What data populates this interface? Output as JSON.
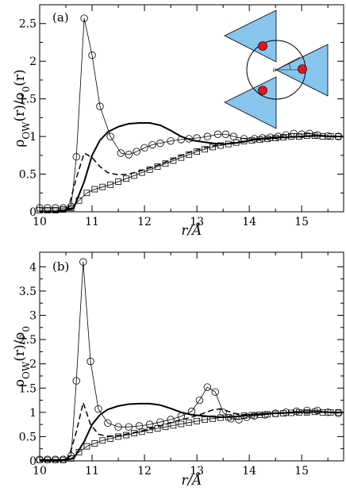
{
  "chart_data": [
    {
      "type": "line",
      "panel_label": "(a)",
      "xlabel": "r/Å",
      "ylabel": "ρOW(r)/ρ0(r)",
      "ylabel_parts": {
        "main": "ρ",
        "sub1": "OW",
        "mid": "(r)/ρ",
        "sub2": "0",
        "tail": "(r)"
      },
      "xlim": [
        10,
        15.8
      ],
      "ylim": [
        0,
        2.75
      ],
      "xticks": [
        10,
        11,
        12,
        13,
        14,
        15
      ],
      "yticks": [
        0,
        0.5,
        1,
        1.5,
        2,
        2.5
      ],
      "grid": false,
      "inset": "three triangles with red dots around a circle, angle θ marked",
      "series": [
        {
          "style": "circles-thin-line",
          "x": [
            10.0,
            10.15,
            10.3,
            10.45,
            10.6,
            10.7,
            10.85,
            11.0,
            11.15,
            11.35,
            11.55,
            11.7,
            11.85,
            12.0,
            12.15,
            12.3,
            12.5,
            12.7,
            12.85,
            13.0,
            13.2,
            13.4,
            13.55,
            13.7,
            13.9,
            14.1,
            14.25,
            14.4,
            14.55,
            14.7,
            14.85,
            15.0,
            15.15,
            15.3,
            15.5,
            15.7
          ],
          "y": [
            0.05,
            0.05,
            0.05,
            0.05,
            0.07,
            0.73,
            2.57,
            2.08,
            1.4,
            1.0,
            0.78,
            0.76,
            0.8,
            0.85,
            0.89,
            0.91,
            0.94,
            0.96,
            0.97,
            0.98,
            1.0,
            1.03,
            1.03,
            1.0,
            0.97,
            0.97,
            0.98,
            0.99,
            1.0,
            1.02,
            1.04,
            1.03,
            1.04,
            1.02,
            1.01,
            1.0
          ]
        },
        {
          "style": "dashed",
          "x": [
            10.0,
            10.3,
            10.55,
            10.7,
            10.85,
            11.0,
            11.15,
            11.3,
            11.5,
            11.7,
            12.0,
            12.3,
            12.6,
            12.9,
            13.2,
            13.5,
            13.8,
            14.1,
            14.4,
            14.7,
            15.0,
            15.3,
            15.6,
            15.8
          ],
          "y": [
            0.0,
            0.0,
            0.05,
            0.45,
            0.78,
            0.72,
            0.6,
            0.52,
            0.49,
            0.5,
            0.56,
            0.63,
            0.72,
            0.8,
            0.86,
            0.9,
            0.93,
            0.95,
            0.97,
            0.99,
            1.0,
            1.01,
            1.0,
            1.0
          ]
        },
        {
          "style": "solid-thick",
          "x": [
            10.0,
            10.4,
            10.65,
            10.85,
            11.0,
            11.15,
            11.3,
            11.5,
            11.7,
            11.9,
            12.1,
            12.3,
            12.5,
            12.7,
            12.9,
            13.1,
            13.3,
            13.5,
            13.7,
            13.9,
            14.1,
            14.4,
            14.7,
            15.0,
            15.3,
            15.6,
            15.8
          ],
          "y": [
            0.0,
            0.0,
            0.05,
            0.4,
            0.75,
            0.95,
            1.06,
            1.13,
            1.17,
            1.18,
            1.18,
            1.15,
            1.08,
            1.0,
            0.95,
            0.93,
            0.91,
            0.9,
            0.91,
            0.93,
            0.96,
            0.98,
            0.99,
            1.0,
            1.01,
            1.0,
            1.0
          ]
        },
        {
          "style": "squares-thin-line",
          "x": [
            10.0,
            10.15,
            10.3,
            10.45,
            10.6,
            10.75,
            10.9,
            11.05,
            11.2,
            11.35,
            11.5,
            11.65,
            11.8,
            11.95,
            12.1,
            12.25,
            12.4,
            12.55,
            12.7,
            12.85,
            13.0,
            13.15,
            13.3,
            13.45,
            13.6,
            13.75,
            13.9,
            14.05,
            14.2,
            14.35,
            14.5,
            14.65,
            14.8,
            14.95,
            15.1,
            15.25,
            15.4,
            15.55,
            15.7
          ],
          "y": [
            0.02,
            0.02,
            0.02,
            0.03,
            0.05,
            0.15,
            0.25,
            0.3,
            0.33,
            0.36,
            0.4,
            0.44,
            0.48,
            0.52,
            0.56,
            0.6,
            0.64,
            0.68,
            0.72,
            0.76,
            0.8,
            0.83,
            0.86,
            0.88,
            0.9,
            0.92,
            0.94,
            0.95,
            0.96,
            0.97,
            0.98,
            0.99,
            1.0,
            1.0,
            1.01,
            1.01,
            1.0,
            1.0,
            1.0
          ]
        }
      ]
    },
    {
      "type": "line",
      "panel_label": "(b)",
      "xlabel": "r/Å",
      "ylabel": "ρOW(r)/ρ0",
      "ylabel_parts": {
        "main": "ρ",
        "sub1": "OW",
        "mid": "(r)/ρ",
        "sub2": "0",
        "tail": ""
      },
      "xlim": [
        10,
        15.8
      ],
      "ylim": [
        0,
        4.3
      ],
      "xticks": [
        10,
        11,
        12,
        13,
        14,
        15
      ],
      "yticks": [
        0,
        0.5,
        1,
        1.5,
        2,
        2.5,
        3,
        3.5,
        4
      ],
      "grid": false,
      "series": [
        {
          "style": "circles-thin-line",
          "x": [
            10.0,
            10.15,
            10.3,
            10.45,
            10.6,
            10.7,
            10.83,
            10.97,
            11.12,
            11.3,
            11.5,
            11.7,
            11.9,
            12.1,
            12.3,
            12.5,
            12.7,
            12.9,
            13.05,
            13.2,
            13.35,
            13.5,
            13.65,
            13.8,
            13.95,
            14.1,
            14.3,
            14.5,
            14.7,
            14.9,
            15.1,
            15.3,
            15.5,
            15.7
          ],
          "y": [
            0.03,
            0.03,
            0.03,
            0.03,
            0.1,
            1.65,
            4.1,
            2.05,
            1.07,
            0.78,
            0.7,
            0.7,
            0.72,
            0.75,
            0.8,
            0.85,
            0.92,
            1.02,
            1.25,
            1.52,
            1.42,
            1.0,
            0.87,
            0.85,
            0.9,
            0.93,
            0.95,
            0.98,
            1.0,
            1.02,
            1.04,
            1.04,
            1.0,
            0.98
          ]
        },
        {
          "style": "dashed",
          "x": [
            10.0,
            10.3,
            10.55,
            10.7,
            10.83,
            10.97,
            11.12,
            11.3,
            11.5,
            11.7,
            12.0,
            12.3,
            12.6,
            12.9,
            13.1,
            13.3,
            13.45,
            13.6,
            13.8,
            14.0,
            14.3,
            14.6,
            14.9,
            15.2,
            15.5,
            15.8
          ],
          "y": [
            0.0,
            0.0,
            0.05,
            0.6,
            1.2,
            0.75,
            0.55,
            0.5,
            0.52,
            0.56,
            0.63,
            0.72,
            0.82,
            0.9,
            0.97,
            1.05,
            1.07,
            1.02,
            0.95,
            0.95,
            0.97,
            0.99,
            1.0,
            1.01,
            1.0,
            1.0
          ]
        },
        {
          "style": "solid-thick",
          "x": [
            10.0,
            10.4,
            10.65,
            10.85,
            11.0,
            11.15,
            11.3,
            11.5,
            11.7,
            11.9,
            12.1,
            12.3,
            12.5,
            12.7,
            12.9,
            13.1,
            13.3,
            13.5,
            13.7,
            13.9,
            14.1,
            14.4,
            14.7,
            15.0,
            15.3,
            15.6,
            15.8
          ],
          "y": [
            0.0,
            0.0,
            0.05,
            0.4,
            0.75,
            0.95,
            1.06,
            1.13,
            1.17,
            1.18,
            1.18,
            1.15,
            1.08,
            1.0,
            0.95,
            0.93,
            0.91,
            0.9,
            0.91,
            0.93,
            0.96,
            0.98,
            0.99,
            1.0,
            1.01,
            1.0,
            1.0
          ]
        },
        {
          "style": "squares-thin-line",
          "x": [
            10.0,
            10.15,
            10.3,
            10.45,
            10.6,
            10.75,
            10.9,
            11.05,
            11.2,
            11.35,
            11.5,
            11.65,
            11.8,
            11.95,
            12.1,
            12.25,
            12.4,
            12.55,
            12.7,
            12.85,
            13.0,
            13.15,
            13.3,
            13.45,
            13.6,
            13.75,
            13.9,
            14.05,
            14.2,
            14.35,
            14.5,
            14.65,
            14.8,
            14.95,
            15.1,
            15.25,
            15.4,
            15.55,
            15.7
          ],
          "y": [
            0.02,
            0.02,
            0.02,
            0.02,
            0.05,
            0.18,
            0.3,
            0.36,
            0.42,
            0.46,
            0.5,
            0.53,
            0.57,
            0.6,
            0.64,
            0.67,
            0.7,
            0.73,
            0.76,
            0.79,
            0.82,
            0.85,
            0.87,
            0.89,
            0.9,
            0.92,
            0.93,
            0.94,
            0.95,
            0.96,
            0.97,
            0.98,
            0.99,
            1.0,
            1.0,
            1.01,
            1.0,
            1.0,
            1.0
          ]
        }
      ]
    }
  ]
}
